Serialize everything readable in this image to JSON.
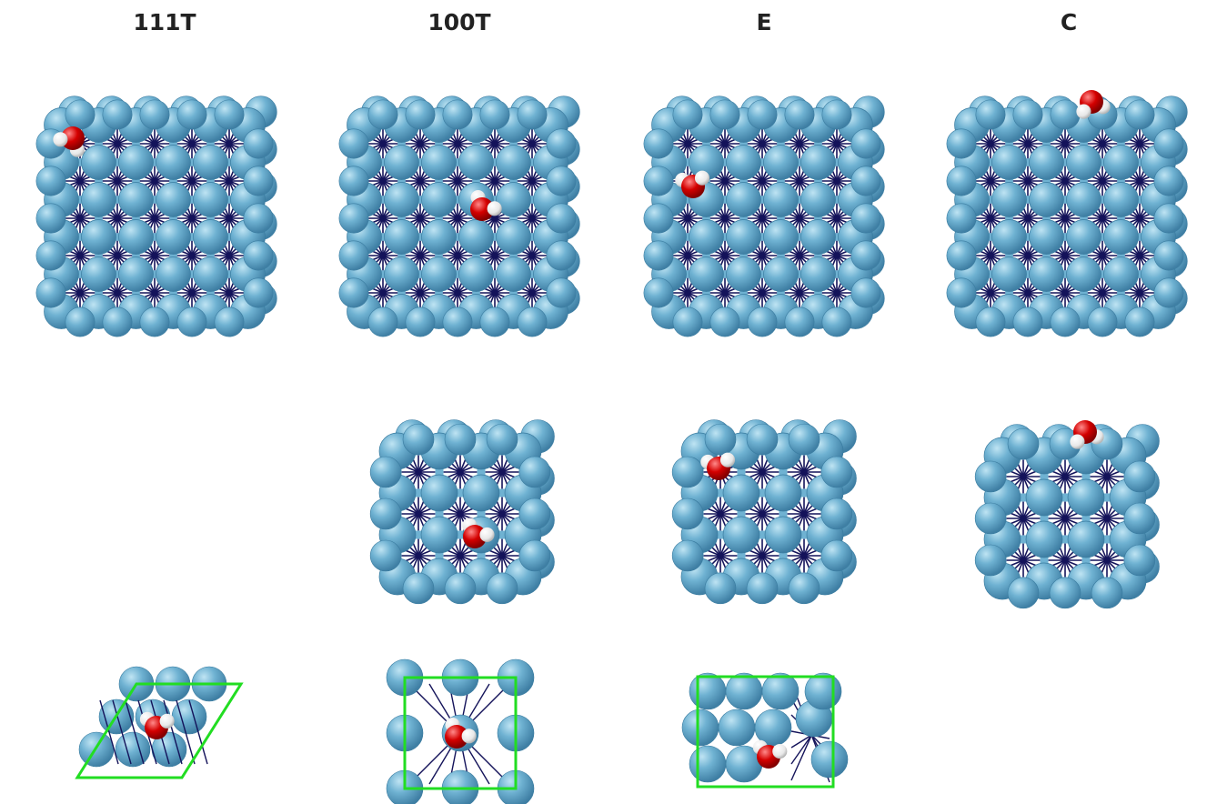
{
  "columns": [
    {
      "id": "111T",
      "label": "111T"
    },
    {
      "id": "100T",
      "label": "100T"
    },
    {
      "id": "E",
      "label": "E"
    },
    {
      "id": "C",
      "label": "C"
    }
  ],
  "colors": {
    "atom": "#6fb2d2",
    "atom_shade": "#3f8bb0",
    "bond_inner": "#14135a",
    "oxygen": "#d40000",
    "hydrogen": "#f2f2f2",
    "cell_outline": "#22dd22"
  }
}
